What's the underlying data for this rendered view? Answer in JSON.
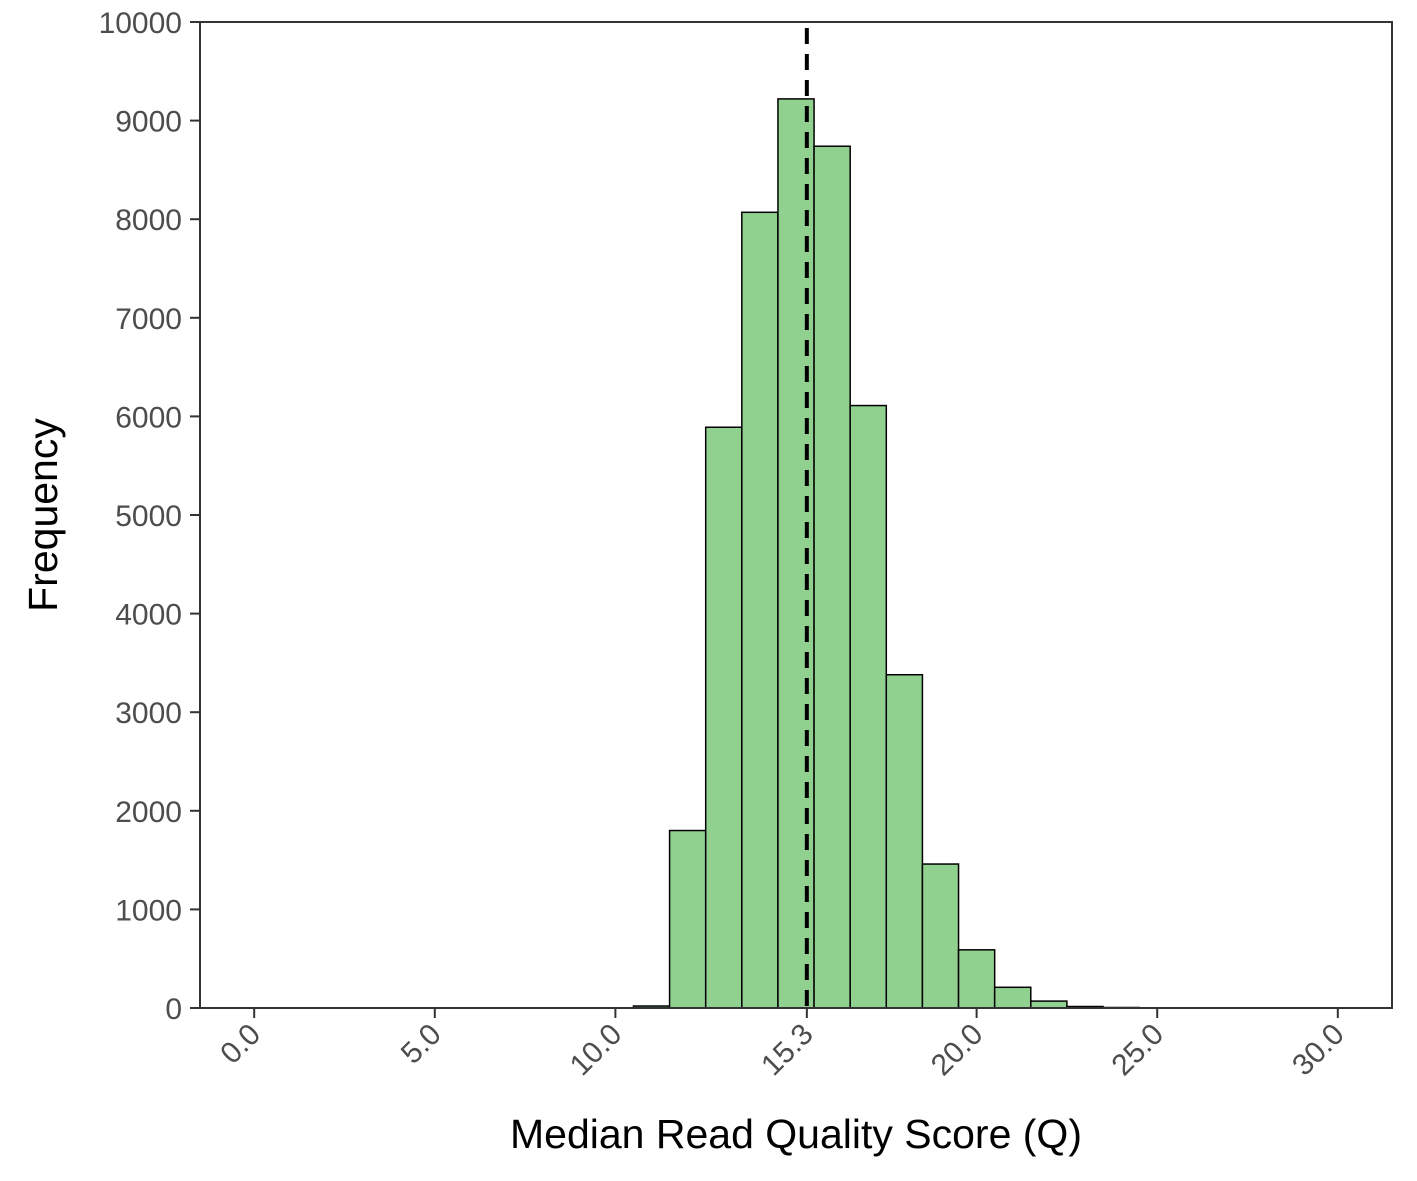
{
  "chart_data": {
    "type": "bar",
    "subtype": "histogram",
    "xlabel": "Median Read Quality Score (Q)",
    "ylabel": "Frequency",
    "xlim": [
      -1.5,
      31.5
    ],
    "ylim": [
      0,
      10000
    ],
    "x_ticks": [
      0,
      5,
      10,
      15.3,
      20,
      25,
      30
    ],
    "x_tick_labels": [
      "0.0",
      "5.0",
      "10.0",
      "15.3",
      "20.0",
      "25.0",
      "30.0"
    ],
    "y_ticks": [
      0,
      1000,
      2000,
      3000,
      4000,
      5000,
      6000,
      7000,
      8000,
      9000,
      10000
    ],
    "y_tick_labels": [
      "0",
      "1000",
      "2000",
      "3000",
      "4000",
      "5000",
      "6000",
      "7000",
      "8000",
      "9000",
      "10000"
    ],
    "bin_width": 1.0,
    "bins": [
      {
        "start": 10.5,
        "end": 11.5,
        "value": 20
      },
      {
        "start": 11.5,
        "end": 12.5,
        "value": 1800
      },
      {
        "start": 12.5,
        "end": 13.5,
        "value": 5890
      },
      {
        "start": 13.5,
        "end": 14.5,
        "value": 8070
      },
      {
        "start": 14.5,
        "end": 15.5,
        "value": 9220
      },
      {
        "start": 15.5,
        "end": 16.5,
        "value": 8740
      },
      {
        "start": 16.5,
        "end": 17.5,
        "value": 6110
      },
      {
        "start": 17.5,
        "end": 18.5,
        "value": 3380
      },
      {
        "start": 18.5,
        "end": 19.5,
        "value": 1460
      },
      {
        "start": 19.5,
        "end": 20.5,
        "value": 590
      },
      {
        "start": 20.5,
        "end": 21.5,
        "value": 210
      },
      {
        "start": 21.5,
        "end": 22.5,
        "value": 70
      },
      {
        "start": 22.5,
        "end": 23.5,
        "value": 15
      },
      {
        "start": 23.5,
        "end": 24.5,
        "value": 5
      },
      {
        "start": 24.5,
        "end": 25.5,
        "value": 2
      }
    ],
    "reference_line": {
      "x": 15.3,
      "style": "dashed",
      "color": "#000000"
    },
    "bar_fill": "#91d18f",
    "bar_stroke": "#000000",
    "grid": false,
    "legend": "none"
  }
}
